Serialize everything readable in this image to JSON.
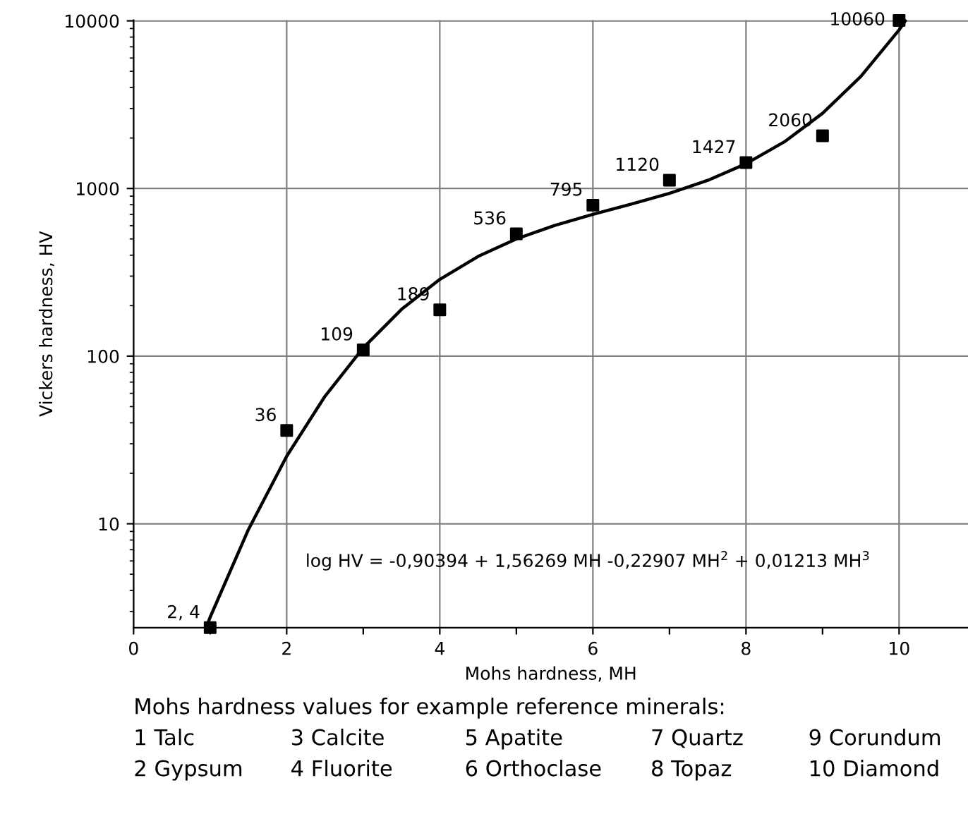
{
  "chart_data": {
    "type": "scatter",
    "xlabel": "Mohs hardness, MH",
    "ylabel": "Vickers hardness, HV",
    "log": "y",
    "grid": true,
    "marker": "square",
    "xlim": [
      0,
      10.9
    ],
    "ylim": [
      2.4,
      10100
    ],
    "xticks": [
      0,
      {
        "value": 1,
        "label": null
      },
      2,
      {
        "value": 3,
        "label": null
      },
      4,
      {
        "value": 5,
        "label": null
      },
      6,
      {
        "value": 7,
        "label": null
      },
      8,
      {
        "value": 9,
        "label": null
      },
      10
    ],
    "yticks": [
      10,
      100,
      1000,
      10000
    ],
    "series": [
      {
        "color": "#000000",
        "x": [
          1,
          2,
          3,
          4,
          5,
          6,
          7,
          8,
          9,
          10
        ],
        "values": [
          2.4,
          36,
          109,
          189,
          536,
          795,
          1120,
          1427,
          2060,
          10060
        ],
        "value_labels": [
          "2, 4",
          "36",
          "109",
          "189",
          "536",
          "795",
          "1120",
          "1427",
          "2060",
          "10060"
        ]
      },
      {
        "type": "line",
        "color": "#000000",
        "line_style": "solid",
        "marker": "none",
        "x": [
          0.95,
          1,
          1.5,
          2,
          2.5,
          3,
          3.5,
          4,
          4.5,
          5,
          5.5,
          6,
          6.5,
          7,
          7.5,
          8,
          8.5,
          9,
          9.5,
          10,
          10.08
        ],
        "values": [
          2.42,
          2.77,
          9.24,
          25.3,
          57.6,
          112,
          190,
          287,
          393,
          500,
          602,
          701,
          806,
          935,
          1118,
          1405,
          1896,
          2808,
          4657,
          8830,
          10000
        ]
      }
    ],
    "annotations": [
      "log HV = -0,90394 + 1,56269 MH -0,22907 MH$^{2}$ + 0,01213 MH$^{3}$",
      "Mohs hardness values for example reference minerals:",
      "1 Talc",
      "2 Gypsum",
      "3 Calcite",
      "4 Fluorite",
      "5 Apatite",
      "6 Orthoclase",
      "7 Quartz",
      "8 Topaz",
      "9 Corundum",
      "10 Diamond"
    ]
  }
}
